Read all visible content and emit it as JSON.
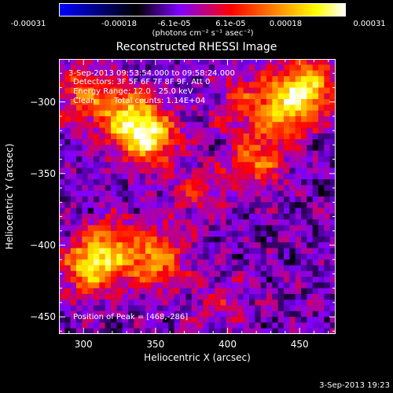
{
  "colorbar": {
    "tick_labels": [
      "-0.00031",
      "-0.00018",
      "-6.1e-05",
      "6.1e-05",
      "0.00018",
      "0.00031"
    ],
    "tick_values": [
      -0.00031,
      -0.00018,
      -6.1e-05,
      6.1e-05,
      0.00018,
      0.00031
    ],
    "range": [
      -0.00031,
      0.00031
    ],
    "units_label": "(photons cm⁻² s⁻¹ asec⁻²)",
    "colors": [
      "#0000ff",
      "#000000",
      "#8000ff",
      "#ff0000",
      "#ff8000",
      "#ffff00",
      "#ffffff"
    ]
  },
  "chart_data": {
    "type": "heatmap",
    "title": "Reconstructed RHESSI Image",
    "xlabel": "Heliocentric X (arcsec)",
    "ylabel": "Heliocentric Y (arcsec)",
    "xlim": [
      283,
      475
    ],
    "ylim": [
      -462,
      -270
    ],
    "xticks": [
      300,
      350,
      400,
      450
    ],
    "yticks": [
      -300,
      -350,
      -400,
      -450
    ],
    "grid": false,
    "bright_regions": [
      {
        "x": 345,
        "y": -325,
        "value": 0.00028
      },
      {
        "x": 330,
        "y": -310,
        "value": 0.00022
      },
      {
        "x": 300,
        "y": -295,
        "value": 0.00016
      },
      {
        "x": 455,
        "y": -290,
        "value": 0.00026
      },
      {
        "x": 440,
        "y": -305,
        "value": 0.0002
      },
      {
        "x": 420,
        "y": -340,
        "value": 0.00018
      },
      {
        "x": 410,
        "y": -300,
        "value": 0.00012
      },
      {
        "x": 350,
        "y": -410,
        "value": 0.00022
      },
      {
        "x": 305,
        "y": -415,
        "value": 0.00026
      },
      {
        "x": 320,
        "y": -400,
        "value": 0.00014
      },
      {
        "x": 380,
        "y": -365,
        "value": 0.0001
      },
      {
        "x": 395,
        "y": -440,
        "value": 8e-05
      }
    ],
    "annotations": {
      "time_range": "3-Sep-2013 09:53:54.000 to 09:58:24.000",
      "detectors": "Detectors: 3F 5F 6F 7F 8F 9F, Att 0",
      "energy_range": "Energy Range: 12.0 - 25.0 keV",
      "clean_label": "Clean",
      "total_counts": "Total counts: 1.14E+04",
      "peak_position": "Position of Peak = [468,-286]"
    }
  },
  "timestamp": "3-Sep-2013 19:23"
}
